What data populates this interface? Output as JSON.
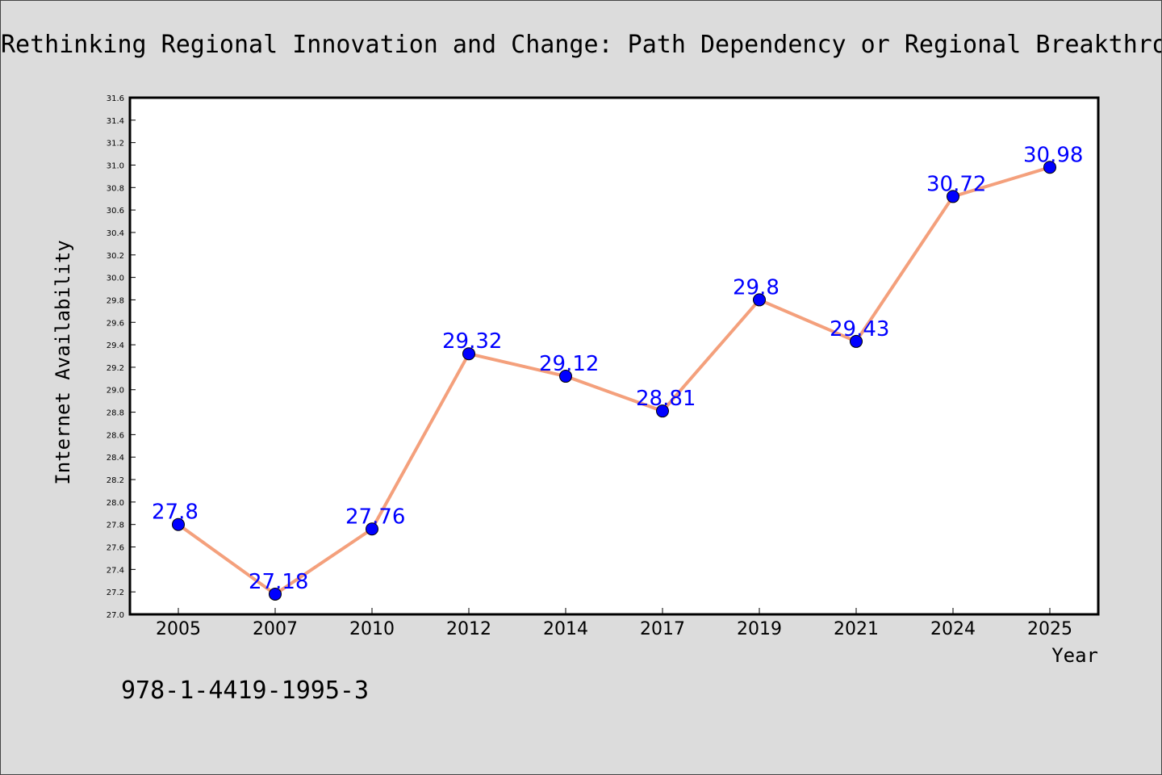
{
  "page": {
    "background_color": "#dcdcdc",
    "isbn": "978-1-4419-1995-3"
  },
  "chart_data": {
    "type": "line",
    "title": "Rethinking Regional Innovation and Change: Path Dependency or Regional Breakthro",
    "xlabel": "Year",
    "ylabel": "Internet Availability",
    "categories": [
      "2005",
      "2007",
      "2010",
      "2012",
      "2014",
      "2017",
      "2019",
      "2021",
      "2024",
      "2025"
    ],
    "values": [
      27.8,
      27.18,
      27.76,
      29.32,
      29.12,
      28.81,
      29.8,
      29.43,
      30.72,
      30.98
    ],
    "data_labels": [
      "27.8",
      "27.18",
      "27.76",
      "29.32",
      "29.12",
      "28.81",
      "29.8",
      "29.43",
      "30.72",
      "30.98"
    ],
    "ylim": [
      27.0,
      31.6
    ],
    "yticks": [
      "27.0",
      "27.2",
      "27.4",
      "27.6",
      "27.8",
      "28.0",
      "28.2",
      "28.4",
      "28.6",
      "28.8",
      "29.0",
      "29.2",
      "29.4",
      "29.6",
      "29.8",
      "30.0",
      "30.2",
      "30.4",
      "30.6",
      "30.8",
      "31.0",
      "31.2",
      "31.4",
      "31.6"
    ],
    "grid": false,
    "legend": "none",
    "colors": {
      "line": "#f4a07c",
      "marker": "#0000ff",
      "label": "#0000ff",
      "plot_background": "#ffffff",
      "frame": "#000000"
    }
  }
}
